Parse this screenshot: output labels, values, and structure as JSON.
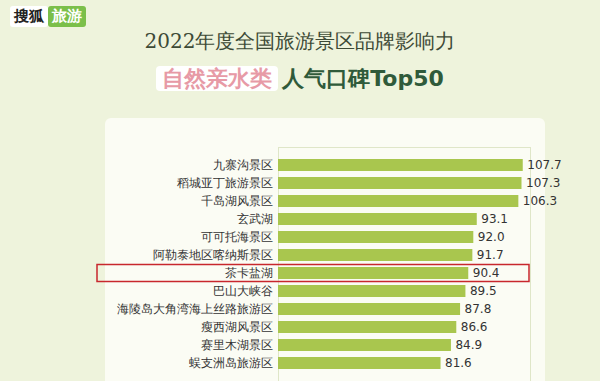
{
  "chart_data": {
    "type": "bar",
    "orientation": "horizontal",
    "logo": [
      "搜狐",
      "旅游"
    ],
    "title": "2022年度全国旅游景区品牌影响力",
    "subtitle": "自然亲水类 人气口碑Top50",
    "categories": [
      "九寨沟景区",
      "稻城亚丁旅游景区",
      "千岛湖风景区",
      "玄武湖",
      "可可托海景区",
      "阿勒泰地区喀纳斯景区",
      "茶卡盐湖",
      "巴山大峡谷",
      "海陵岛大角湾海上丝路旅游区",
      "瘦西湖风景区",
      "赛里木湖景区",
      "蜈支洲岛旅游区"
    ],
    "values": [
      107.7,
      107.3,
      106.3,
      93.1,
      92.0,
      91.7,
      90.4,
      89.5,
      87.8,
      86.6,
      84.9,
      81.6
    ],
    "value_labels": [
      "107.7",
      "107.3",
      "106.3",
      "93.1",
      "92.0",
      "91.7",
      "90.4",
      "89.5",
      "87.8",
      "86.6",
      "84.9",
      "81.6"
    ],
    "highlight": "茶卡盐湖",
    "color": "#a9c64e",
    "xlim": [
      30,
      110
    ],
    "xticks": [],
    "data_labels": true,
    "tick_labels": "y",
    "grid": false
  }
}
